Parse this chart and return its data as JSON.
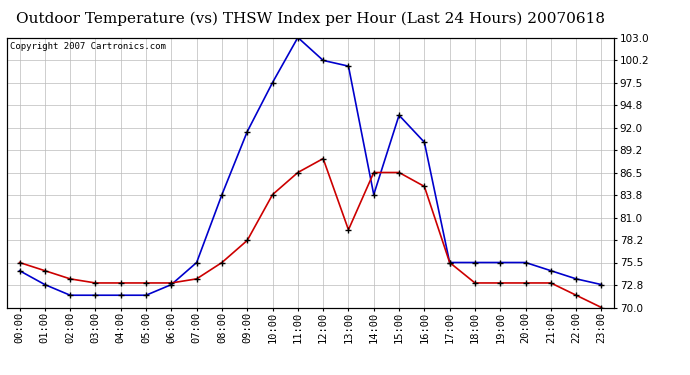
{
  "title": "Outdoor Temperature (vs) THSW Index per Hour (Last 24 Hours) 20070618",
  "copyright_text": "Copyright 2007 Cartronics.com",
  "hours": [
    "00:00",
    "01:00",
    "02:00",
    "03:00",
    "04:00",
    "05:00",
    "06:00",
    "07:00",
    "08:00",
    "09:00",
    "10:00",
    "11:00",
    "12:00",
    "13:00",
    "14:00",
    "15:00",
    "16:00",
    "17:00",
    "18:00",
    "19:00",
    "20:00",
    "21:00",
    "22:00",
    "23:00"
  ],
  "temp_outdoor": [
    75.5,
    74.5,
    73.5,
    73.0,
    73.0,
    73.0,
    73.0,
    73.5,
    75.5,
    78.2,
    83.8,
    86.5,
    88.2,
    79.5,
    86.5,
    86.5,
    84.8,
    75.5,
    73.0,
    73.0,
    73.0,
    73.0,
    71.5,
    70.0
  ],
  "thsw_index": [
    74.5,
    72.8,
    71.5,
    71.5,
    71.5,
    71.5,
    72.8,
    75.5,
    83.8,
    91.5,
    97.5,
    103.0,
    100.2,
    99.5,
    83.8,
    93.5,
    90.2,
    75.5,
    75.5,
    75.5,
    75.5,
    74.5,
    73.5,
    72.8
  ],
  "y_min": 70.0,
  "y_max": 103.0,
  "y_ticks": [
    70.0,
    72.8,
    75.5,
    78.2,
    81.0,
    83.8,
    86.5,
    89.2,
    92.0,
    94.8,
    97.5,
    100.2,
    103.0
  ],
  "line_color_red": "#cc0000",
  "line_color_blue": "#0000cc",
  "bg_color": "#ffffff",
  "plot_bg_color": "#ffffff",
  "grid_color": "#bbbbbb",
  "title_fontsize": 11,
  "tick_fontsize": 7.5,
  "copyright_fontsize": 6.5
}
